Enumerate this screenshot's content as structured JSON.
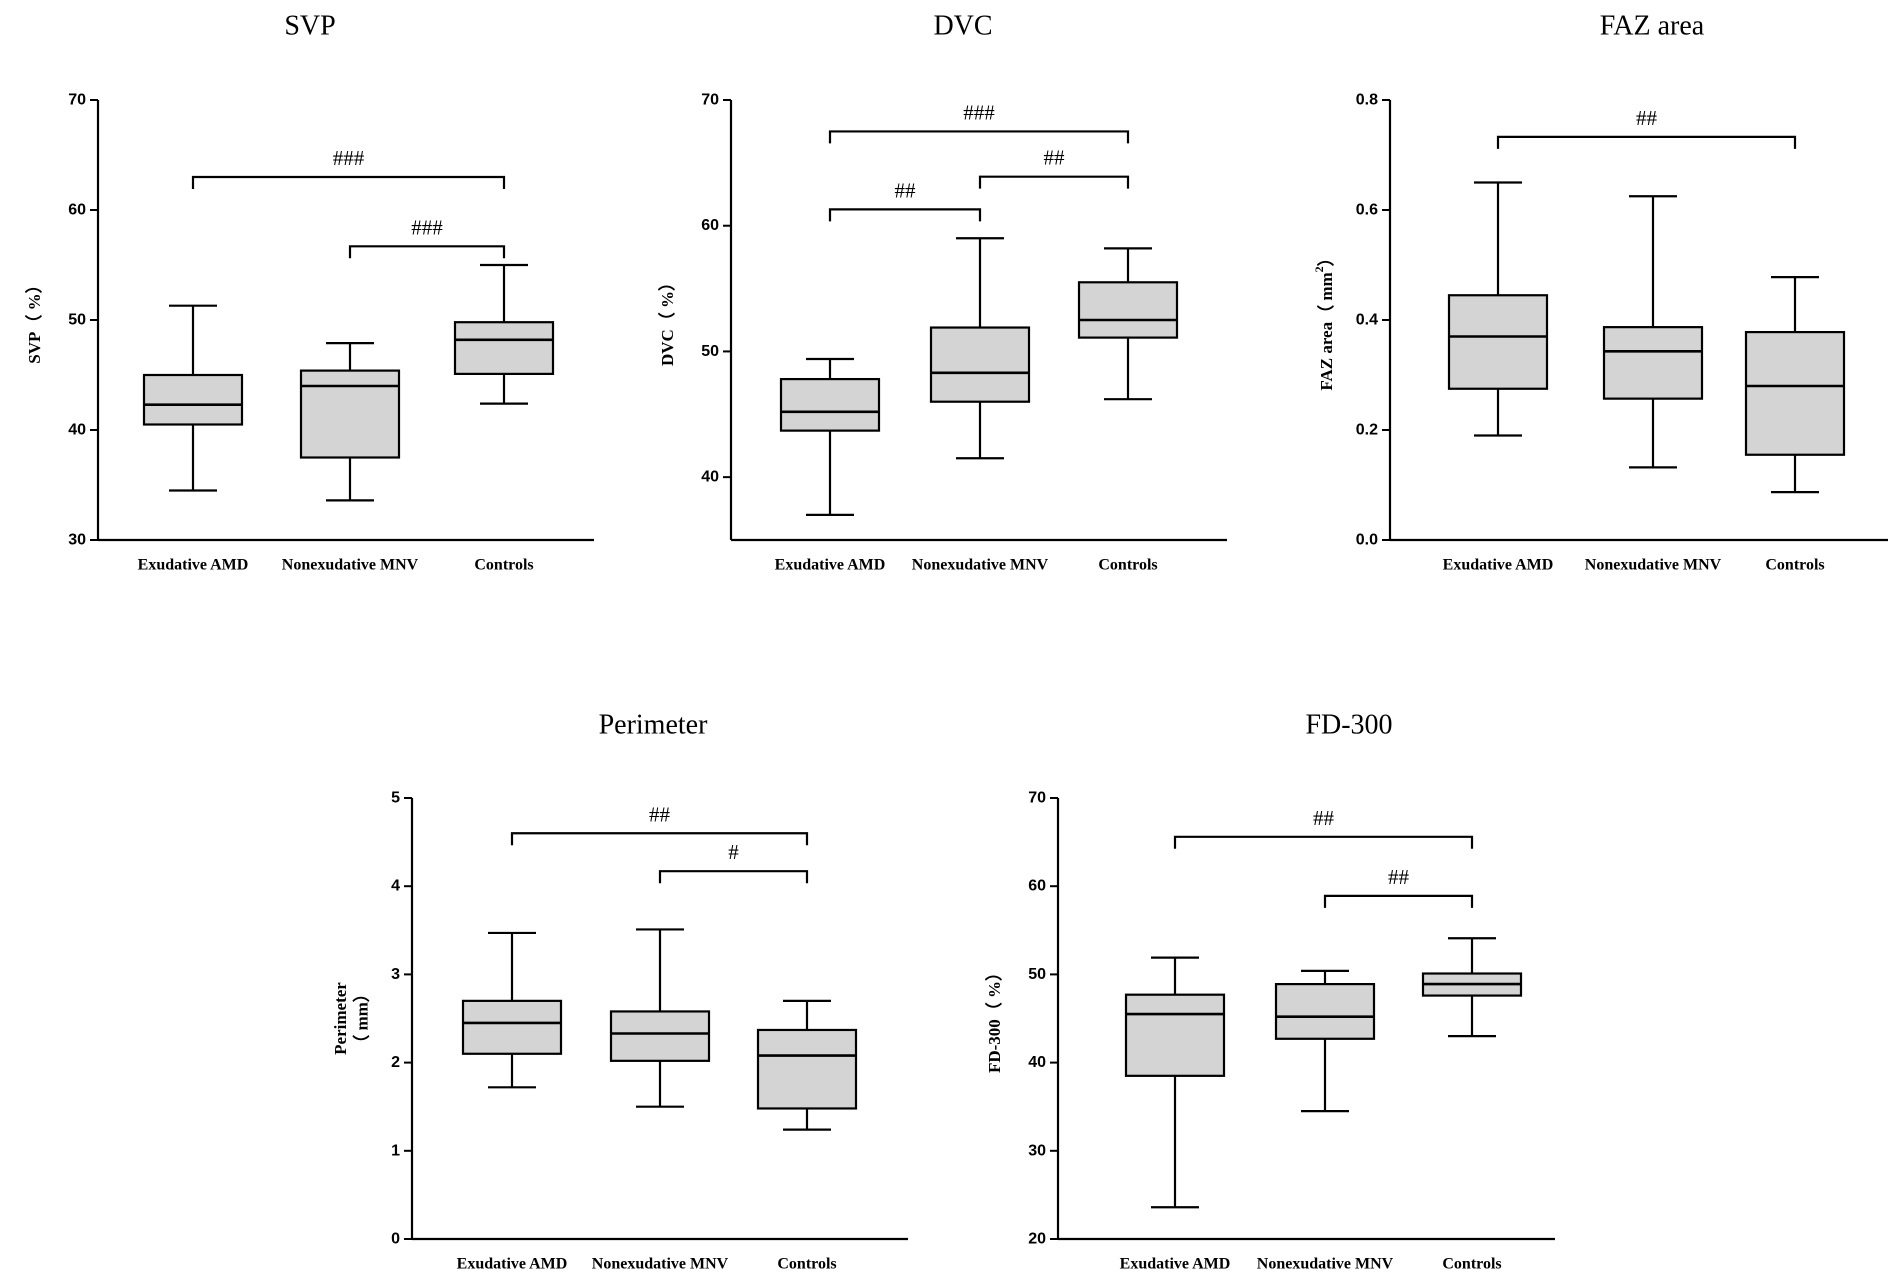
{
  "chart_data": [
    {
      "type": "box",
      "title": "SVP",
      "ylabel": "SVP（ %）",
      "ylim": [
        30,
        70
      ],
      "yticks": [
        "30",
        "40",
        "50",
        "60",
        "70"
      ],
      "categories": [
        "Exudative AMD",
        "Nonexudative MNV",
        "Controls"
      ],
      "boxes": [
        {
          "min": 34.5,
          "q1": 40.5,
          "median": 42.3,
          "q3": 45.0,
          "max": 51.3
        },
        {
          "min": 33.6,
          "q1": 37.5,
          "median": 44.0,
          "q3": 45.4,
          "max": 47.9
        },
        {
          "min": 42.4,
          "q1": 45.1,
          "median": 48.2,
          "q3": 49.8,
          "max": 55.0
        }
      ],
      "significance": [
        {
          "from": 0,
          "to": 2,
          "label": "###",
          "y": 63.0
        },
        {
          "from": 1,
          "to": 2,
          "label": "###",
          "y": 56.7
        }
      ]
    },
    {
      "type": "box",
      "title": "DVC",
      "ylabel": "DVC（ %）",
      "ylim": [
        35,
        70
      ],
      "yticks": [
        "40",
        "50",
        "60",
        "70"
      ],
      "categories": [
        "Exudative AMD",
        "Nonexudative MNV",
        "Controls"
      ],
      "boxes": [
        {
          "min": 37.0,
          "q1": 43.7,
          "median": 45.2,
          "q3": 47.8,
          "max": 49.4
        },
        {
          "min": 41.5,
          "q1": 46.0,
          "median": 48.3,
          "q3": 51.9,
          "max": 59.0
        },
        {
          "min": 46.2,
          "q1": 51.1,
          "median": 52.5,
          "q3": 55.5,
          "max": 58.2
        }
      ],
      "significance": [
        {
          "from": 0,
          "to": 2,
          "label": "###",
          "y": 67.5
        },
        {
          "from": 1,
          "to": 2,
          "label": "##",
          "y": 63.9
        },
        {
          "from": 0,
          "to": 1,
          "label": "##",
          "y": 61.3
        }
      ]
    },
    {
      "type": "box",
      "title": "FAZ area",
      "ylabel": "FAZ area（ mm",
      "ylabel_superscript": "2",
      "ylabel_close": "）",
      "ylim": [
        0,
        0.8
      ],
      "yticks": [
        "0.0",
        "0.2",
        "0.4",
        "0.6",
        "0.8"
      ],
      "categories": [
        "Exudative AMD",
        "Nonexudative MNV",
        "Controls"
      ],
      "boxes": [
        {
          "min": 0.19,
          "q1": 0.275,
          "median": 0.37,
          "q3": 0.445,
          "max": 0.65
        },
        {
          "min": 0.132,
          "q1": 0.257,
          "median": 0.343,
          "q3": 0.387,
          "max": 0.625
        },
        {
          "min": 0.087,
          "q1": 0.155,
          "median": 0.28,
          "q3": 0.378,
          "max": 0.478
        }
      ],
      "significance": [
        {
          "from": 0,
          "to": 2,
          "label": "##",
          "y": 0.733
        }
      ]
    },
    {
      "type": "box",
      "title": "Perimeter",
      "ylabel": "Perimeter",
      "ylabel_line2": "（ mm）",
      "ylim": [
        0,
        5
      ],
      "yticks": [
        "0",
        "1",
        "2",
        "3",
        "4",
        "5"
      ],
      "categories": [
        "Exudative AMD",
        "Nonexudative MNV",
        "Controls"
      ],
      "boxes": [
        {
          "min": 1.72,
          "q1": 2.1,
          "median": 2.45,
          "q3": 2.7,
          "max": 3.47
        },
        {
          "min": 1.5,
          "q1": 2.02,
          "median": 2.33,
          "q3": 2.58,
          "max": 3.51
        },
        {
          "min": 1.24,
          "q1": 1.48,
          "median": 2.08,
          "q3": 2.37,
          "max": 2.7
        }
      ],
      "significance": [
        {
          "from": 0,
          "to": 2,
          "label": "##",
          "y": 4.6
        },
        {
          "from": 1,
          "to": 2,
          "label": "#",
          "y": 4.17
        }
      ]
    },
    {
      "type": "box",
      "title": "FD-300",
      "ylabel": "FD-300（ %）",
      "ylim": [
        20,
        70
      ],
      "yticks": [
        "20",
        "30",
        "40",
        "50",
        "60",
        "70"
      ],
      "categories": [
        "Exudative AMD",
        "Nonexudative MNV",
        "Controls"
      ],
      "boxes": [
        {
          "min": 23.6,
          "q1": 38.5,
          "median": 45.5,
          "q3": 47.7,
          "max": 51.9
        },
        {
          "min": 34.5,
          "q1": 42.7,
          "median": 45.2,
          "q3": 48.9,
          "max": 50.4
        },
        {
          "min": 43.0,
          "q1": 47.6,
          "median": 48.9,
          "q3": 50.1,
          "max": 54.1
        }
      ],
      "significance": [
        {
          "from": 0,
          "to": 2,
          "label": "##",
          "y": 65.6
        },
        {
          "from": 1,
          "to": 2,
          "label": "##",
          "y": 58.9
        }
      ]
    }
  ]
}
